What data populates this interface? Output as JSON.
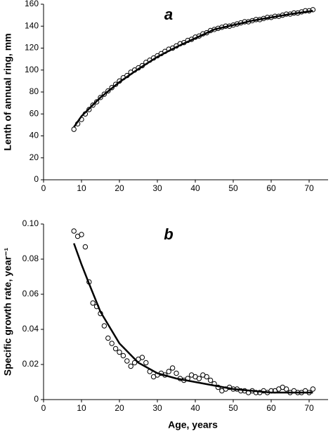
{
  "chart_data": [
    {
      "type": "scatter",
      "panel_label": "a",
      "ylabel": "Lenth of annual ring, mm",
      "xlim": [
        0,
        75
      ],
      "ylim": [
        0,
        160
      ],
      "xticks": [
        0,
        10,
        20,
        30,
        40,
        50,
        60,
        70
      ],
      "yticks": [
        0,
        20,
        40,
        60,
        80,
        100,
        120,
        140,
        160
      ],
      "color": "#000000",
      "points": {
        "x": [
          8,
          9,
          10,
          11,
          12,
          13,
          14,
          15,
          16,
          17,
          18,
          19,
          20,
          21,
          22,
          23,
          24,
          25,
          26,
          27,
          28,
          29,
          30,
          31,
          32,
          33,
          34,
          35,
          36,
          37,
          38,
          39,
          40,
          41,
          42,
          43,
          44,
          45,
          46,
          47,
          48,
          49,
          50,
          51,
          52,
          53,
          54,
          55,
          56,
          57,
          58,
          59,
          60,
          61,
          62,
          63,
          64,
          65,
          66,
          67,
          68,
          69,
          70,
          71
        ],
        "values": [
          46,
          51,
          55,
          60,
          64,
          68,
          71,
          75,
          78,
          81,
          84,
          87,
          90,
          93,
          95,
          98,
          100,
          102,
          104,
          107,
          109,
          111,
          113,
          115,
          117,
          119,
          120,
          122,
          124,
          125,
          127,
          128,
          130,
          131,
          133,
          134,
          136,
          137,
          138,
          139,
          140,
          140,
          141,
          142,
          143,
          144,
          144,
          145,
          146,
          146,
          147,
          148,
          148,
          149,
          149,
          150,
          151,
          151,
          152,
          152,
          153,
          154,
          154,
          155
        ]
      },
      "fit": {
        "x": [
          8,
          10,
          15,
          20,
          25,
          30,
          35,
          40,
          45,
          50,
          55,
          60,
          65,
          71
        ],
        "values": [
          48,
          58,
          75,
          89,
          101,
          112,
          121,
          129,
          137,
          141,
          145,
          148,
          151,
          154
        ]
      }
    },
    {
      "type": "scatter",
      "panel_label": "b",
      "ylabel": "Specific growth rate, year⁻¹",
      "xlabel": "Age, years",
      "xlim": [
        0,
        75
      ],
      "ylim": [
        0,
        0.1
      ],
      "xticks": [
        0,
        10,
        20,
        30,
        40,
        50,
        60,
        70
      ],
      "yticks": [
        0,
        0.02,
        0.04,
        0.06,
        0.08,
        {
          "value": 0.1,
          "label": "0.10"
        }
      ],
      "color": "#000000",
      "points": {
        "x": [
          8,
          9,
          10,
          11,
          12,
          13,
          14,
          15,
          16,
          17,
          18,
          19,
          20,
          21,
          22,
          23,
          24,
          25,
          26,
          27,
          28,
          29,
          30,
          31,
          32,
          33,
          34,
          35,
          36,
          37,
          38,
          39,
          40,
          41,
          42,
          43,
          44,
          45,
          46,
          47,
          48,
          49,
          50,
          51,
          52,
          53,
          54,
          55,
          56,
          57,
          58,
          59,
          60,
          61,
          62,
          63,
          64,
          65,
          66,
          67,
          68,
          69,
          70,
          71
        ],
        "values": [
          0.096,
          0.093,
          0.094,
          0.087,
          0.067,
          0.055,
          0.053,
          0.049,
          0.042,
          0.035,
          0.032,
          0.029,
          0.027,
          0.025,
          0.022,
          0.019,
          0.021,
          0.023,
          0.024,
          0.021,
          0.016,
          0.013,
          0.014,
          0.015,
          0.014,
          0.016,
          0.018,
          0.015,
          0.012,
          0.011,
          0.012,
          0.014,
          0.013,
          0.012,
          0.014,
          0.013,
          0.011,
          0.009,
          0.007,
          0.005,
          0.006,
          0.007,
          0.006,
          0.006,
          0.005,
          0.005,
          0.004,
          0.005,
          0.004,
          0.004,
          0.005,
          0.004,
          0.005,
          0.005,
          0.006,
          0.007,
          0.006,
          0.004,
          0.005,
          0.004,
          0.004,
          0.005,
          0.004,
          0.006
        ]
      },
      "fit": {
        "x": [
          8,
          10,
          12,
          15,
          20,
          25,
          30,
          35,
          40,
          45,
          50,
          55,
          60,
          65,
          71
        ],
        "values": [
          0.089,
          0.077,
          0.066,
          0.05,
          0.032,
          0.021,
          0.015,
          0.012,
          0.01,
          0.008,
          0.006,
          0.005,
          0.004,
          0.004,
          0.004
        ]
      }
    }
  ]
}
